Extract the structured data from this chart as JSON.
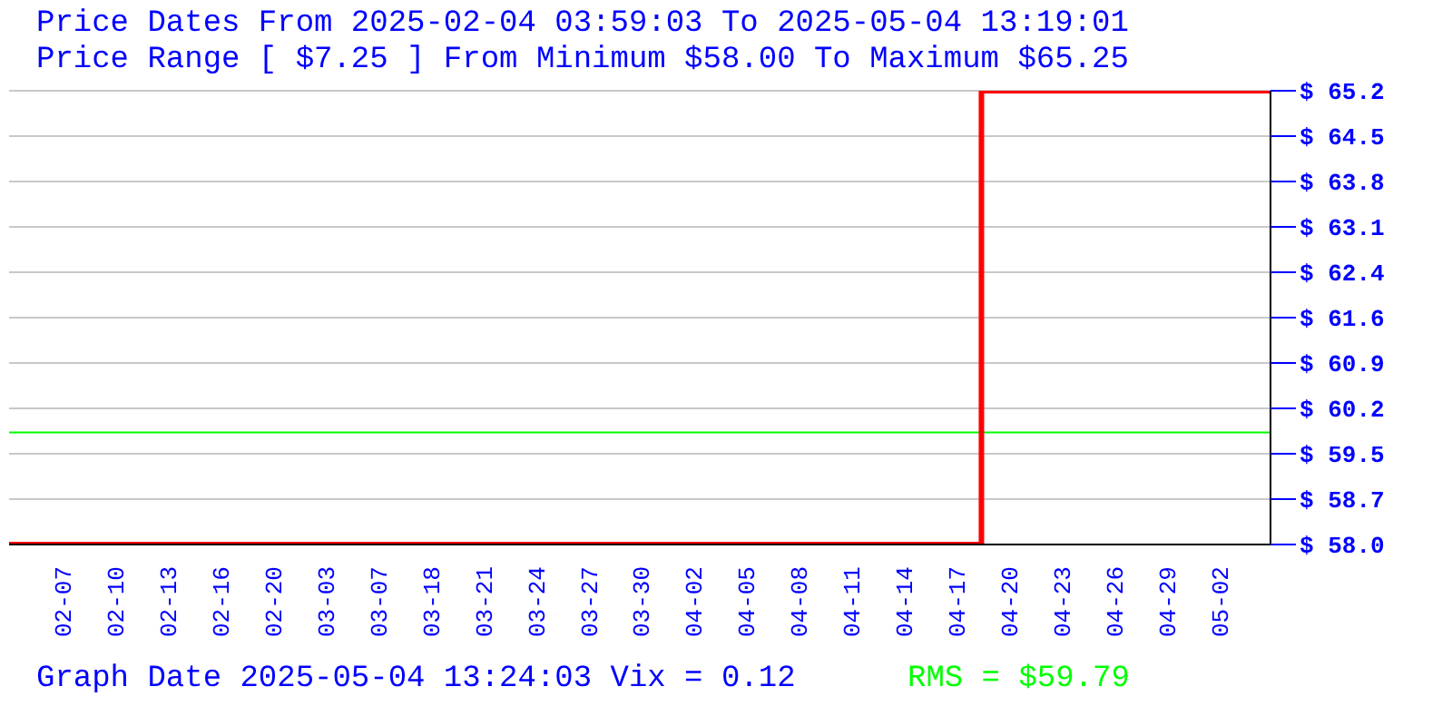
{
  "chart_data": {
    "type": "step",
    "title": "Price Dates From 2025-02-04 03:59:03 To 2025-05-04 13:19:01",
    "subtitle": "Price Range [ $7.25 ] From Minimum $58.00 To Maximum $65.25",
    "annotations": [
      "Graph Date 2025-05-04 13:24:03 Vix = 0.12",
      "RMS = $59.79"
    ],
    "categories": [
      null,
      "02-07",
      "02-10",
      "02-13",
      "02-16",
      "02-20",
      "03-03",
      "03-07",
      "03-18",
      "03-21",
      "03-24",
      "03-27",
      "03-30",
      "04-02",
      "04-05",
      "04-08",
      "04-11",
      "04-14",
      "04-17",
      "04-20",
      "04-23",
      "04-26",
      "04-29",
      "05-02",
      null
    ],
    "series": [
      {
        "color": "#ff0000",
        "values": [
          58,
          58,
          58,
          58,
          58,
          58,
          58,
          58,
          58,
          58,
          58,
          58,
          58,
          58,
          58,
          58,
          58,
          58,
          58,
          65.25,
          65.25,
          65.25,
          65.25,
          65.25,
          65.25
        ]
      }
    ],
    "ylim": [
      58,
      65.25
    ],
    "yticks": [
      {
        "value": 58,
        "label": "$ 58.0"
      },
      {
        "value": 58.725,
        "label": "$ 58.7"
      },
      {
        "value": 59.45,
        "label": "$ 59.5"
      },
      {
        "value": 60.175,
        "label": "$ 60.2"
      },
      {
        "value": 60.9,
        "label": "$ 60.9"
      },
      {
        "value": 61.625,
        "label": "$ 61.6"
      },
      {
        "value": 62.35,
        "label": "$ 62.4"
      },
      {
        "value": 63.075,
        "label": "$ 63.1"
      },
      {
        "value": 63.8,
        "label": "$ 63.8"
      },
      {
        "value": 64.525,
        "label": "$ 64.5"
      },
      {
        "value": 65.25,
        "label": "$ 65.2"
      }
    ],
    "ref_lines": [
      {
        "axis": "y",
        "value": 59.79,
        "color": "#00ff00"
      }
    ],
    "grid": "y",
    "marker": "none",
    "line_style": "solid"
  }
}
